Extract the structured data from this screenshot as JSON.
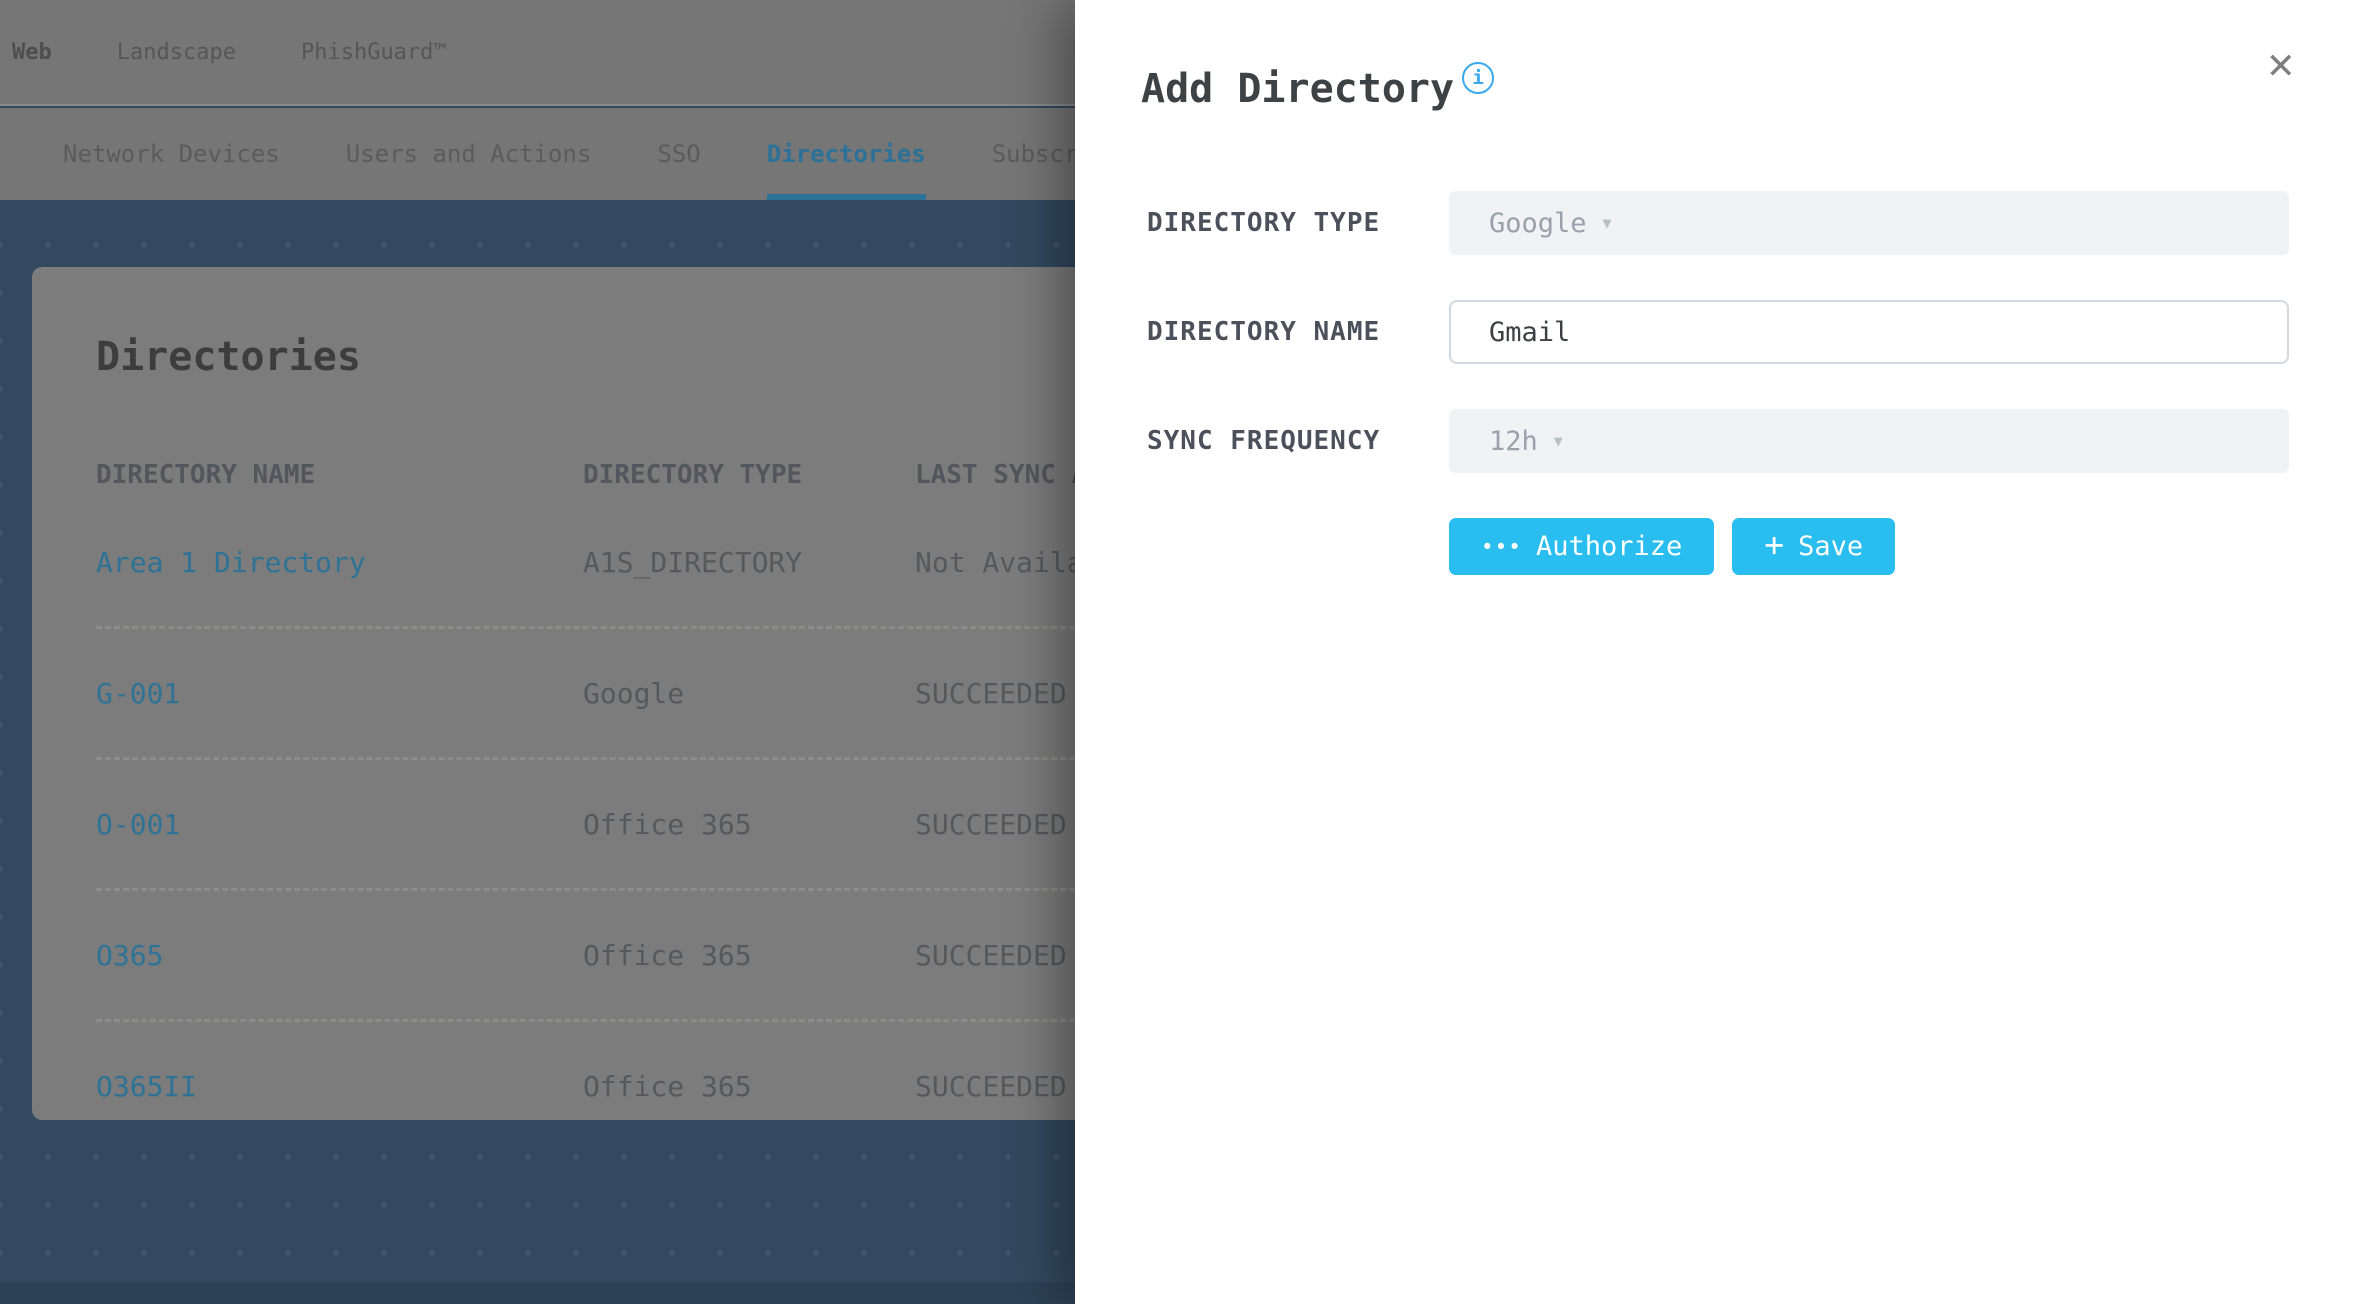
{
  "header": {
    "brand": [
      {
        "label": "Web"
      },
      {
        "label": "Landscape"
      },
      {
        "label": "PhishGuard™"
      }
    ]
  },
  "tabs": [
    {
      "label": "Network Devices",
      "active": false
    },
    {
      "label": "Users and Actions",
      "active": false
    },
    {
      "label": "SSO",
      "active": false
    },
    {
      "label": "Directories",
      "active": true
    },
    {
      "label": "Subscri",
      "active": false
    }
  ],
  "directories_card": {
    "title": "Directories",
    "columns": [
      {
        "label": "DIRECTORY NAME"
      },
      {
        "label": "DIRECTORY TYPE"
      },
      {
        "label": "LAST SYNC A"
      }
    ],
    "rows": [
      {
        "name": "Area 1 Directory",
        "type": "A1S_DIRECTORY",
        "last_sync": "Not Availa"
      },
      {
        "name": "G-001",
        "type": "Google",
        "last_sync": "SUCCEEDED"
      },
      {
        "name": "O-001",
        "type": "Office 365",
        "last_sync": "SUCCEEDED"
      },
      {
        "name": "O365",
        "type": "Office 365",
        "last_sync": "SUCCEEDED"
      },
      {
        "name": "O365II",
        "type": "Office 365",
        "last_sync": "SUCCEEDED"
      }
    ]
  },
  "modal": {
    "title": "Add Directory",
    "icons": {
      "info": "i",
      "close": "✕",
      "caret": "▼",
      "ellipsis": "•••",
      "plus": "+"
    },
    "fields": [
      {
        "label": "DIRECTORY TYPE",
        "value": "Google",
        "control": "select",
        "disabled": true
      },
      {
        "label": "DIRECTORY NAME",
        "value": "Gmail",
        "control": "text",
        "disabled": false
      },
      {
        "label": "SYNC FREQUENCY",
        "value": "12h",
        "control": "select",
        "disabled": true
      }
    ],
    "buttons": [
      {
        "label": "Authorize",
        "icon": "ellipsis"
      },
      {
        "label": "Save",
        "icon": "plus"
      }
    ]
  },
  "colors": {
    "accent_cyan": "#29bdf0",
    "info_blue": "#38a9ec",
    "active_tab_blue": "#2b7198",
    "link_blue": "#2e7296",
    "navy_background": "#32495f",
    "input_border": "#cfdae2"
  }
}
